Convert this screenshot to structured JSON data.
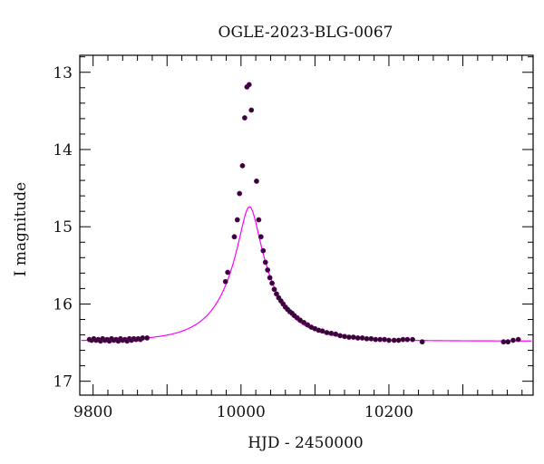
{
  "chart_data": {
    "type": "scatter",
    "title": "OGLE-2023-BLG-0067",
    "xlabel": "HJD - 2450000",
    "ylabel": "I magnitude",
    "xlim": [
      9782,
      10395
    ],
    "ylim": [
      17.18,
      12.78
    ],
    "y_inverted": true,
    "x_ticks": [
      9800,
      10000,
      10200
    ],
    "y_ticks": [
      13,
      14,
      15,
      16,
      17
    ],
    "grid": false,
    "colors": {
      "model": "#ff00ff",
      "points": "#2b0a2b",
      "point_edge": "#7a007a"
    },
    "model_params": {
      "t0": 10011.5,
      "tE": 60,
      "u0": 0.205,
      "baseline_mag": 16.48
    },
    "series": [
      {
        "kind": "observations",
        "points": [
          [
            9795,
            16.46
          ],
          [
            9798,
            16.47
          ],
          [
            9801,
            16.45
          ],
          [
            9804,
            16.47
          ],
          [
            9807,
            16.46
          ],
          [
            9810,
            16.48
          ],
          [
            9813,
            16.45
          ],
          [
            9816,
            16.47
          ],
          [
            9819,
            16.46
          ],
          [
            9822,
            16.48
          ],
          [
            9825,
            16.45
          ],
          [
            9828,
            16.47
          ],
          [
            9831,
            16.46
          ],
          [
            9834,
            16.48
          ],
          [
            9837,
            16.45
          ],
          [
            9840,
            16.47
          ],
          [
            9843,
            16.46
          ],
          [
            9846,
            16.48
          ],
          [
            9849,
            16.45
          ],
          [
            9852,
            16.47
          ],
          [
            9855,
            16.45
          ],
          [
            9858,
            16.46
          ],
          [
            9861,
            16.45
          ],
          [
            9864,
            16.46
          ],
          [
            9867,
            16.44
          ],
          [
            9873,
            16.44
          ],
          [
            9979,
            15.71
          ],
          [
            9982,
            15.59
          ],
          [
            9991,
            15.13
          ],
          [
            9995,
            14.91
          ],
          [
            9998,
            14.57
          ],
          [
            10002,
            14.21
          ],
          [
            10005,
            13.59
          ],
          [
            10008,
            13.19
          ],
          [
            10011,
            13.16
          ],
          [
            10014,
            13.49
          ],
          [
            10021,
            14.41
          ],
          [
            10024,
            14.91
          ],
          [
            10027,
            15.13
          ],
          [
            10030,
            15.31
          ],
          [
            10033,
            15.46
          ],
          [
            10036,
            15.56
          ],
          [
            10039,
            15.66
          ],
          [
            10042,
            15.73
          ],
          [
            10045,
            15.81
          ],
          [
            10048,
            15.87
          ],
          [
            10051,
            15.92
          ],
          [
            10054,
            15.96
          ],
          [
            10057,
            16.0
          ],
          [
            10060,
            16.04
          ],
          [
            10063,
            16.07
          ],
          [
            10066,
            16.1
          ],
          [
            10069,
            16.12
          ],
          [
            10072,
            16.15
          ],
          [
            10076,
            16.18
          ],
          [
            10080,
            16.21
          ],
          [
            10085,
            16.24
          ],
          [
            10090,
            16.27
          ],
          [
            10095,
            16.3
          ],
          [
            10100,
            16.32
          ],
          [
            10105,
            16.34
          ],
          [
            10110,
            16.35
          ],
          [
            10116,
            16.37
          ],
          [
            10122,
            16.38
          ],
          [
            10128,
            16.39
          ],
          [
            10134,
            16.41
          ],
          [
            10140,
            16.42
          ],
          [
            10146,
            16.43
          ],
          [
            10152,
            16.43
          ],
          [
            10158,
            16.44
          ],
          [
            10164,
            16.44
          ],
          [
            10170,
            16.45
          ],
          [
            10176,
            16.45
          ],
          [
            10182,
            16.46
          ],
          [
            10188,
            16.46
          ],
          [
            10194,
            16.46
          ],
          [
            10200,
            16.47
          ],
          [
            10207,
            16.47
          ],
          [
            10213,
            16.47
          ],
          [
            10219,
            16.46
          ],
          [
            10225,
            16.46
          ],
          [
            10232,
            16.46
          ],
          [
            10245,
            16.49
          ],
          [
            10355,
            16.49
          ],
          [
            10361,
            16.49
          ],
          [
            10368,
            16.47
          ],
          [
            10375,
            16.46
          ]
        ]
      }
    ]
  }
}
